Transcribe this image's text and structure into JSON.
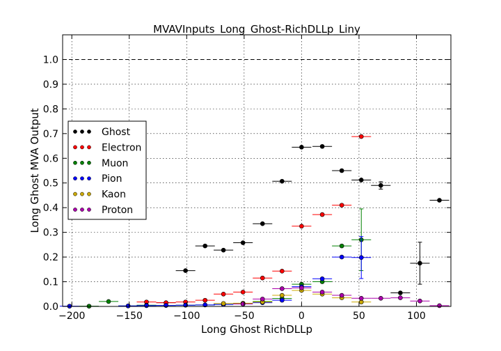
{
  "chart_data": {
    "type": "scatter",
    "title": "MVAVInputs_Long_Ghost-RichDLLp_Liny",
    "xlabel": "Long Ghost RichDLLp",
    "ylabel": "Long Ghost MVA Output",
    "xlim": [
      -208,
      130
    ],
    "ylim": [
      0,
      1.1
    ],
    "xticks": [
      -200,
      -150,
      -100,
      -50,
      0,
      50,
      100
    ],
    "xtick_labels": [
      "−200",
      "−150",
      "−100",
      "−50",
      "0",
      "50",
      "100"
    ],
    "yticks": [
      0.0,
      0.1,
      0.2,
      0.3,
      0.4,
      0.5,
      0.6,
      0.7,
      0.8,
      0.9,
      1.0
    ],
    "ytick_labels": [
      "0.0",
      "0.1",
      "0.2",
      "0.3",
      "0.4",
      "0.5",
      "0.6",
      "0.7",
      "0.8",
      "0.9",
      "1.0"
    ],
    "grid": true,
    "reference_line_y": 1.0,
    "legend_position": "center-left",
    "series": [
      {
        "name": "Ghost",
        "color": "#000000",
        "x": [
          -118,
          -101,
          -84,
          -68,
          -51,
          -34,
          -17,
          0,
          18,
          35,
          52,
          69,
          86,
          103,
          120
        ],
        "y": [
          0.015,
          0.145,
          0.245,
          0.228,
          0.258,
          0.335,
          0.507,
          0.645,
          0.648,
          0.55,
          0.512,
          0.49,
          0.055,
          0.175,
          0.43
        ],
        "xerr": [
          8.5,
          8.5,
          8.5,
          8.5,
          8.5,
          8.5,
          8.5,
          8.5,
          8.5,
          8.5,
          8.5,
          8.5,
          8.5,
          8.5,
          8.5
        ],
        "yerr": [
          0.003,
          0.006,
          0.006,
          0.006,
          0.006,
          0.006,
          0.006,
          0.006,
          0.006,
          0.008,
          0.01,
          0.015,
          0.008,
          0.085,
          0.005
        ]
      },
      {
        "name": "Electron",
        "color": "#ff0000",
        "x": [
          -135,
          -118,
          -101,
          -84,
          -68,
          -51,
          -34,
          -17,
          0,
          18,
          35,
          52
        ],
        "y": [
          0.018,
          0.015,
          0.018,
          0.025,
          0.05,
          0.058,
          0.115,
          0.143,
          0.325,
          0.372,
          0.41,
          0.688
        ],
        "xerr": [
          8.5,
          8.5,
          8.5,
          8.5,
          8.5,
          8.5,
          8.5,
          8.5,
          8.5,
          8.5,
          8.5,
          8.5
        ],
        "yerr": [
          0.002,
          0.002,
          0.002,
          0.002,
          0.003,
          0.003,
          0.004,
          0.004,
          0.005,
          0.005,
          0.006,
          0.006
        ]
      },
      {
        "name": "Muon",
        "color": "#008000",
        "x": [
          -185,
          -168,
          -151,
          -135,
          -118,
          -101,
          -84,
          -68,
          -51,
          -34,
          -17,
          0,
          18,
          35,
          52
        ],
        "y": [
          0.001,
          0.02,
          0.002,
          0.005,
          0.004,
          0.005,
          0.006,
          0.008,
          0.012,
          0.02,
          0.032,
          0.09,
          0.1,
          0.245,
          0.27
        ],
        "xerr": [
          8.5,
          8.5,
          8.5,
          8.5,
          8.5,
          8.5,
          8.5,
          8.5,
          8.5,
          8.5,
          8.5,
          8.5,
          8.5,
          8.5,
          8.5
        ],
        "yerr": [
          0.001,
          0.002,
          0.001,
          0.001,
          0.001,
          0.001,
          0.001,
          0.001,
          0.002,
          0.002,
          0.003,
          0.005,
          0.006,
          0.008,
          0.125
        ]
      },
      {
        "name": "Pion",
        "color": "#0000ff",
        "x": [
          -202,
          -151,
          -135,
          -118,
          -101,
          -84,
          -68,
          -51,
          -34,
          -17,
          0,
          18,
          35,
          52
        ],
        "y": [
          0.001,
          0.002,
          0.003,
          0.004,
          0.005,
          0.006,
          0.008,
          0.01,
          0.015,
          0.025,
          0.08,
          0.112,
          0.2,
          0.198
        ],
        "xerr": [
          8.5,
          8.5,
          8.5,
          8.5,
          8.5,
          8.5,
          8.5,
          8.5,
          8.5,
          8.5,
          8.5,
          8.5,
          8.5,
          8.5
        ],
        "yerr": [
          0.001,
          0.001,
          0.001,
          0.001,
          0.001,
          0.001,
          0.001,
          0.001,
          0.001,
          0.002,
          0.003,
          0.004,
          0.004,
          0.085
        ]
      },
      {
        "name": "Kaon",
        "color": "#ccaa00",
        "x": [
          -68,
          -51,
          -34,
          -17,
          0,
          18,
          35,
          52
        ],
        "y": [
          0.012,
          0.013,
          0.018,
          0.045,
          0.065,
          0.05,
          0.035,
          0.018
        ],
        "xerr": [
          8.5,
          8.5,
          8.5,
          8.5,
          8.5,
          8.5,
          8.5,
          8.5
        ],
        "yerr": [
          0.001,
          0.001,
          0.002,
          0.002,
          0.003,
          0.003,
          0.003,
          0.003
        ]
      },
      {
        "name": "Proton",
        "color": "#aa00aa",
        "x": [
          -51,
          -34,
          -17,
          0,
          18,
          35,
          52,
          69,
          86,
          103,
          120
        ],
        "y": [
          0.01,
          0.03,
          0.072,
          0.075,
          0.058,
          0.045,
          0.033,
          0.033,
          0.035,
          0.022,
          0.003
        ],
        "xerr": [
          8.5,
          8.5,
          8.5,
          8.5,
          8.5,
          8.5,
          8.5,
          8.5,
          8.5,
          8.5,
          8.5
        ],
        "yerr": [
          0.001,
          0.002,
          0.003,
          0.003,
          0.003,
          0.003,
          0.003,
          0.003,
          0.003,
          0.003,
          0.002
        ]
      }
    ]
  }
}
